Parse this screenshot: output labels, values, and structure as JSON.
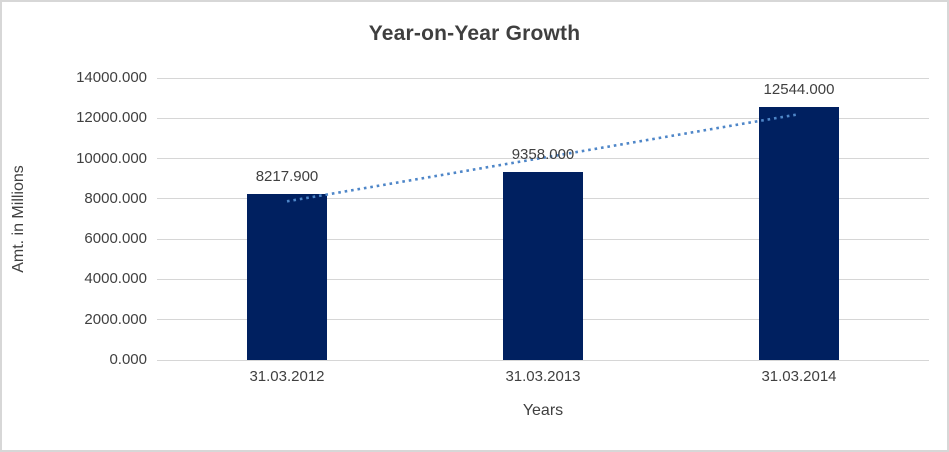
{
  "chart": {
    "title": "Year-on-Year Growth",
    "xlabel": "Years",
    "ylabel": "Amt. in Millions"
  },
  "chart_data": {
    "type": "bar",
    "title": "Year-on-Year Growth",
    "categories": [
      "31.03.2012",
      "31.03.2013",
      "31.03.2014"
    ],
    "values": [
      8217.9,
      9358.0,
      12544.0
    ],
    "value_labels": [
      "8217.900",
      "9358.000",
      "12544.000"
    ],
    "xlabel": "Years",
    "ylabel": "Amt. in Millions",
    "ylim": [
      0,
      14000
    ],
    "ytick_values": [
      0,
      2000,
      4000,
      6000,
      8000,
      10000,
      12000,
      14000
    ],
    "ytick_labels": [
      "0.000",
      "2000.000",
      "4000.000",
      "6000.000",
      "8000.000",
      "10000.000",
      "12000.000",
      "14000.000"
    ],
    "grid": true,
    "legend": false,
    "bar_color": "#002060",
    "trendline": {
      "type": "linear",
      "style": "dotted",
      "color": "#4e86c8",
      "start_value": 7877,
      "end_value": 12203
    }
  },
  "colors": {
    "background": "#ffffff",
    "border": "#d7d7d7",
    "gridline": "#d6d6d6",
    "text": "#404040",
    "title_text": "#3f3f3f",
    "bar": "#002060",
    "trendline": "#4e86c8"
  }
}
